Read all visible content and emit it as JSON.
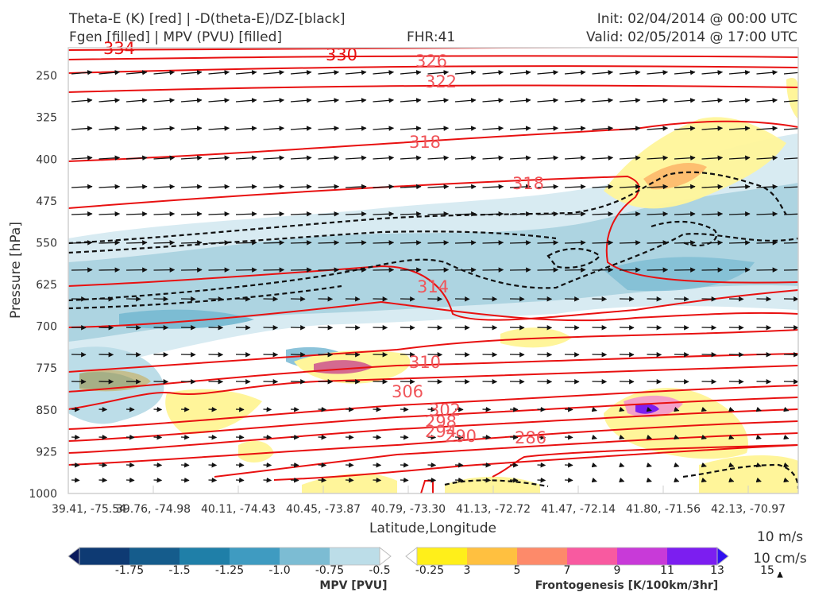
{
  "header": {
    "title_line1": "Theta-E (K) [red] | -D(theta-E)/DZ-[black]",
    "title_line2": "Fgen [filled] | MPV (PVU) [filled]",
    "fhr": "FHR:41",
    "init": "Init: 02/04/2014 @ 00:00 UTC",
    "valid": "Valid: 02/05/2014 @ 17:00 UTC"
  },
  "chart_data": {
    "type": "cross-section",
    "xlabel": "Latitude,Longitude",
    "ylabel": "Pressure [hPa]",
    "x_ticks": [
      "39.41, -75.54",
      "39.76, -74.98",
      "40.11, -74.43",
      "40.45, -73.87",
      "40.79, -73.30",
      "41.13, -72.72",
      "41.47, -72.14",
      "41.80, -71.56",
      "42.13, -70.97"
    ],
    "y_ticks": [
      250,
      325,
      400,
      475,
      550,
      625,
      700,
      775,
      850,
      925,
      1000
    ],
    "ylim": [
      1000,
      200
    ],
    "y_inverted": true,
    "theta_e_contour_labels": [
      {
        "value": 334,
        "x": 2.8,
        "p": 207
      },
      {
        "value": 330,
        "x": 3.6,
        "p": 215
      },
      {
        "value": 326,
        "x": 3.6,
        "p": 243
      },
      {
        "value": 322,
        "x": 3.5,
        "p": 379
      },
      {
        "value": 318,
        "x": 4.8,
        "p": 460
      },
      {
        "value": 318,
        "x": 3.6,
        "p": 664
      },
      {
        "value": 314,
        "x": 3.5,
        "p": 794
      },
      {
        "value": 310,
        "x": 3.2,
        "p": 831
      },
      {
        "value": 306,
        "x": 3.5,
        "p": 853
      },
      {
        "value": 302,
        "x": 3.5,
        "p": 873
      },
      {
        "value": 298,
        "x": 3.5,
        "p": 893
      },
      {
        "value": 294,
        "x": 3.8,
        "p": 903
      },
      {
        "value": 290,
        "x": 4.6,
        "p": 909
      },
      {
        "value": 286,
        "x": 5.9,
        "p": 918
      }
    ],
    "vector_reference": [
      "10 m/s",
      "10 cm/s"
    ],
    "colorbars": [
      {
        "title": "MPV [PVU]",
        "tick_labels": [
          "-1.75",
          "-1.5",
          "-1.25",
          "-1.0",
          "-0.75",
          "-0.5",
          "-0.25"
        ],
        "colors": [
          "#0a1a5c",
          "#0e3a73",
          "#155c8c",
          "#1f7fa8",
          "#3f9bc1",
          "#7cbcd3",
          "#bcdde8",
          "#ffffff"
        ]
      },
      {
        "title": "Frontogenesis [K/100km/3hr]",
        "tick_labels": [
          "3",
          "5",
          "7",
          "9",
          "11",
          "13",
          "15"
        ],
        "colors": [
          "#ffffff",
          "#ffef1a",
          "#ffc040",
          "#fd8a6a",
          "#f85aa0",
          "#c83ad8",
          "#7c1ef0",
          "#3010f0"
        ]
      }
    ]
  }
}
